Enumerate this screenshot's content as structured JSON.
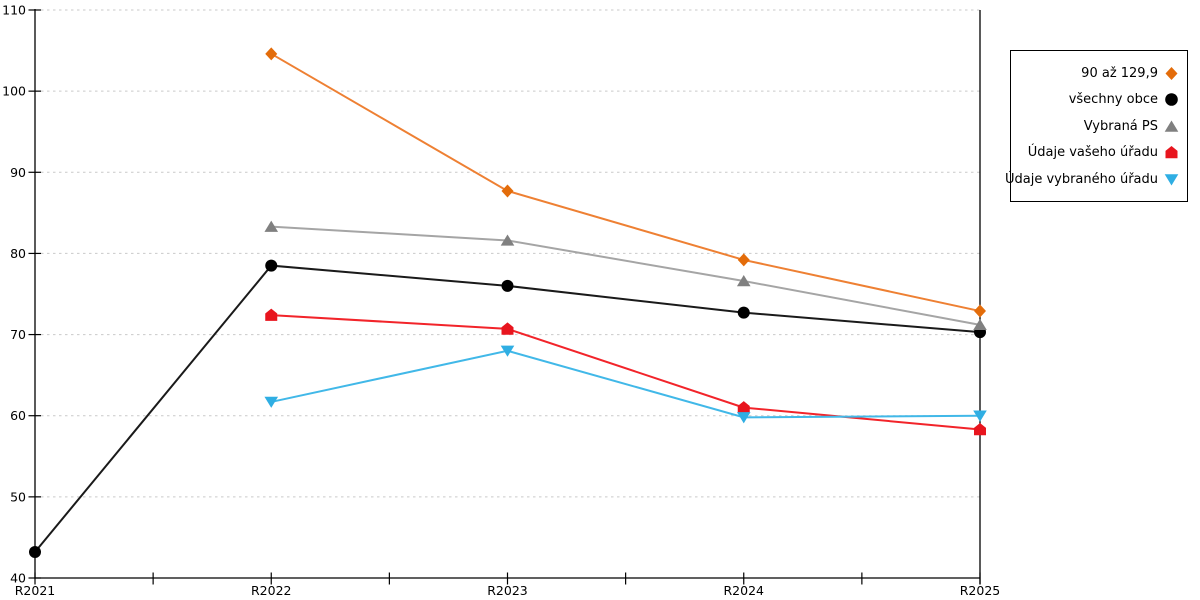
{
  "chart_data": {
    "type": "line",
    "title": "",
    "x_categories": [
      "R2021",
      "R2022",
      "R2023",
      "R2024",
      "R2025"
    ],
    "y_ticks": [
      40,
      50,
      60,
      70,
      80,
      90,
      100,
      110
    ],
    "ylim": [
      40,
      110
    ],
    "grid": "horizontal-dashed",
    "legend_position": "outside-right",
    "right_boundary_line_x": "R2025",
    "series": [
      {
        "name": "90 až 129,9",
        "marker": "diamond",
        "color": "#EE8033",
        "marker_color": "#E36C0A",
        "x": [
          "R2022",
          "R2023",
          "R2024",
          "R2025"
        ],
        "values": [
          104.6,
          87.7,
          79.2,
          72.9
        ]
      },
      {
        "name": "všechny obce",
        "marker": "circle",
        "color": "#1A1A1A",
        "marker_color": "#000000",
        "x": [
          "R2021",
          "R2022",
          "R2023",
          "R2024",
          "R2025"
        ],
        "values": [
          43.2,
          78.5,
          76.0,
          72.7,
          70.3
        ]
      },
      {
        "name": "Vybraná PS",
        "marker": "triangle-up",
        "color": "#A5A5A5",
        "marker_color": "#808080",
        "x": [
          "R2022",
          "R2023",
          "R2024",
          "R2025"
        ],
        "values": [
          83.3,
          81.6,
          76.6,
          71.2
        ]
      },
      {
        "name": "Údaje vašeho úřadu",
        "marker": "pentagon",
        "color": "#F2242A",
        "marker_color": "#E8151E",
        "x": [
          "R2022",
          "R2023",
          "R2024",
          "R2025"
        ],
        "values": [
          72.4,
          70.7,
          61.0,
          58.3
        ]
      },
      {
        "name": "Údaje vybraného úřadu",
        "marker": "triangle-down",
        "color": "#41B8E8",
        "marker_color": "#2FAEE3",
        "x": [
          "R2022",
          "R2023",
          "R2024",
          "R2025"
        ],
        "values": [
          61.7,
          68.0,
          59.8,
          60.0
        ]
      }
    ],
    "colors": {
      "gridline": "#C9C9C9",
      "axis": "#000000",
      "background": "#FFFFFF",
      "tick_label": "#000000"
    }
  }
}
